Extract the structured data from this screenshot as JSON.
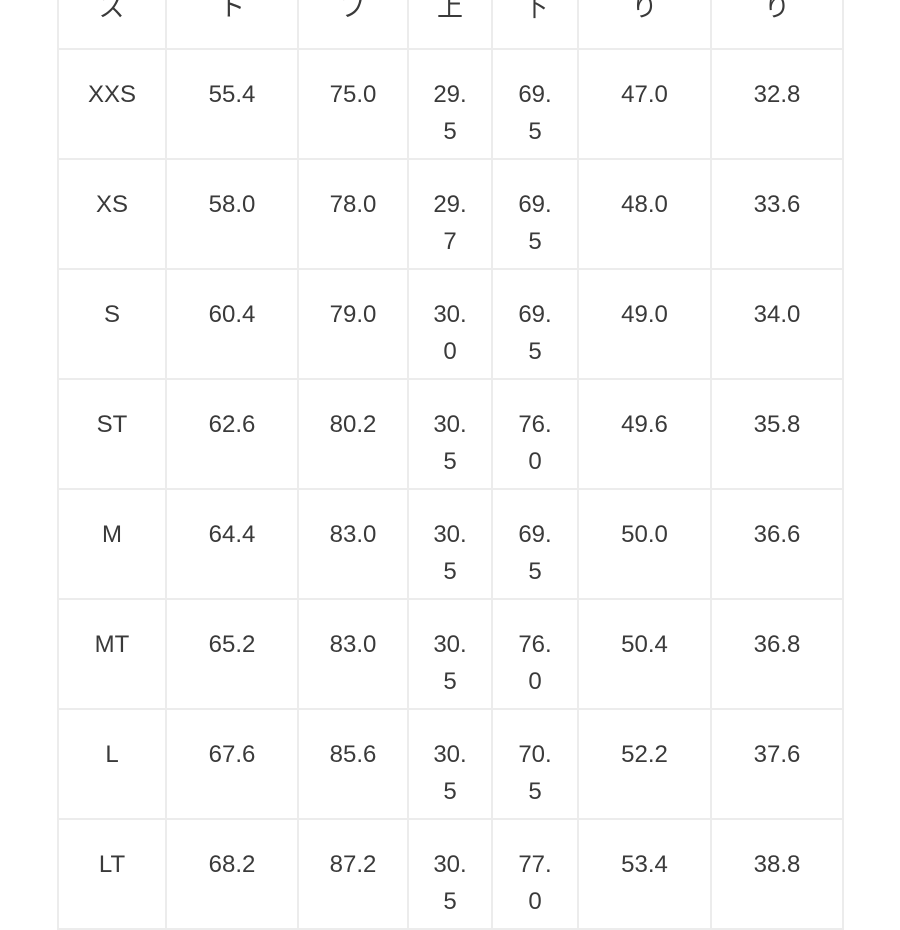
{
  "headers": [
    "ズ",
    "ト",
    "プ",
    "上",
    "下",
    "り",
    "り"
  ],
  "rows": [
    [
      "XXS",
      "55.4",
      "75.0",
      "29.5",
      "69.5",
      "47.0",
      "32.8"
    ],
    [
      "XS",
      "58.0",
      "78.0",
      "29.7",
      "69.5",
      "48.0",
      "33.6"
    ],
    [
      "S",
      "60.4",
      "79.0",
      "30.0",
      "69.5",
      "49.0",
      "34.0"
    ],
    [
      "ST",
      "62.6",
      "80.2",
      "30.5",
      "76.0",
      "49.6",
      "35.8"
    ],
    [
      "M",
      "64.4",
      "83.0",
      "30.5",
      "69.5",
      "50.0",
      "36.6"
    ],
    [
      "MT",
      "65.2",
      "83.0",
      "30.5",
      "76.0",
      "50.4",
      "36.8"
    ],
    [
      "L",
      "67.6",
      "85.6",
      "30.5",
      "70.5",
      "52.2",
      "37.6"
    ],
    [
      "LT",
      "68.2",
      "87.2",
      "30.5",
      "77.0",
      "53.4",
      "38.8"
    ]
  ]
}
